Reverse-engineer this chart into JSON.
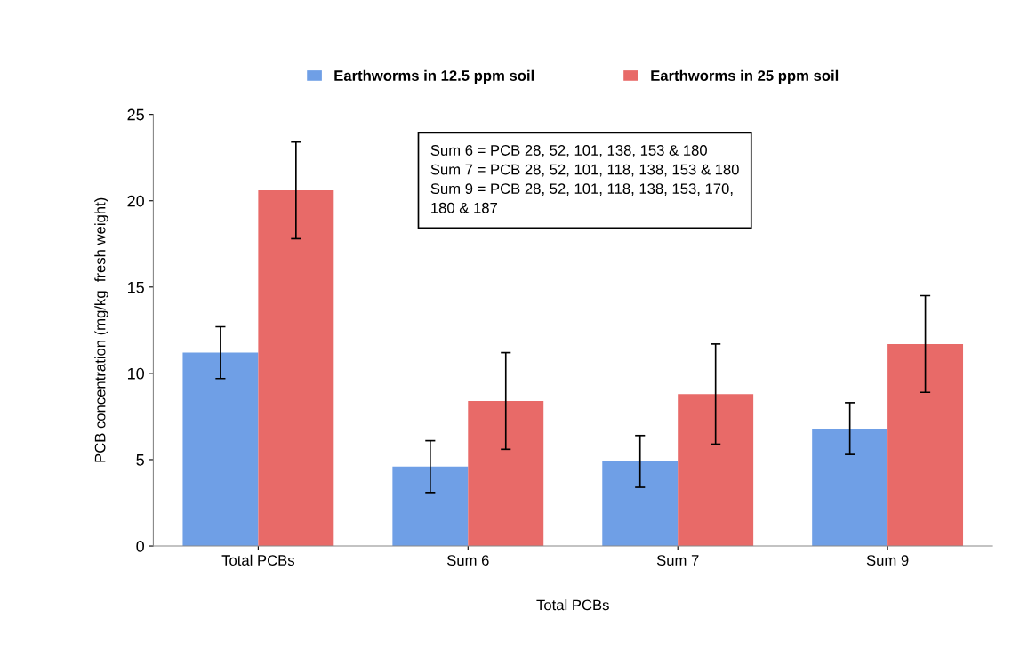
{
  "chart_data": {
    "type": "bar",
    "xlabel": "Total PCBs",
    "ylabel": "PCB concentration (mg/kg  fresh weight)",
    "categories": [
      "Total PCBs",
      "Sum 6",
      "Sum 7",
      "Sum 9"
    ],
    "series": [
      {
        "name": "Earthworms in 12.5 ppm soil",
        "color": "#6f9fe6",
        "values": [
          11.2,
          4.6,
          4.9,
          6.8
        ],
        "errors": [
          1.5,
          1.5,
          1.5,
          1.5
        ]
      },
      {
        "name": "Earthworms in 25 ppm soil",
        "color": "#e86a68",
        "values": [
          20.6,
          8.4,
          8.8,
          11.7
        ],
        "errors": [
          2.8,
          2.8,
          2.9,
          2.8
        ]
      }
    ],
    "ylim": [
      0,
      25
    ],
    "yticks": [
      0,
      5,
      10,
      15,
      20,
      25
    ],
    "grid": false,
    "legend": "top",
    "annotations": [
      "Sum 6 = PCB 28, 52, 101, 138, 153 & 180\nSum 7 = PCB 28, 52, 101, 118, 138, 153 & 180\nSum 9 = PCB 28, 52, 101, 118, 138, 153, 170,\n180 & 187"
    ]
  }
}
